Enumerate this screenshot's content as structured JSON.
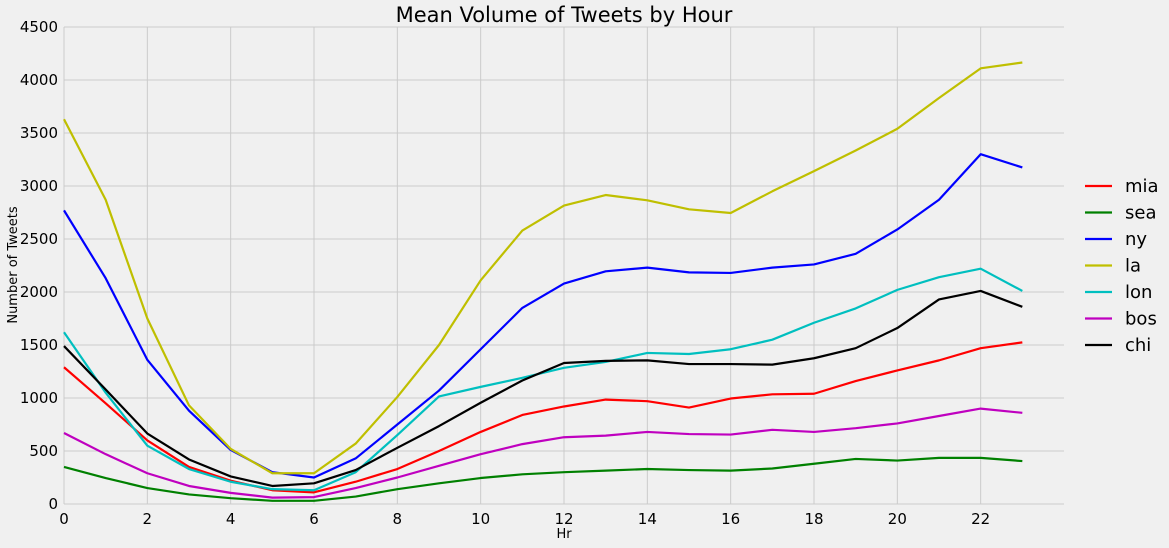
{
  "chart_data": {
    "type": "line",
    "title": "Mean Volume of Tweets by Hour",
    "xlabel": "Hr",
    "ylabel": "Number of Tweets",
    "xlim": [
      0,
      24
    ],
    "ylim": [
      0,
      4500
    ],
    "xticks": [
      0,
      2,
      4,
      6,
      8,
      10,
      12,
      14,
      16,
      18,
      20,
      22
    ],
    "yticks": [
      0,
      500,
      1000,
      1500,
      2000,
      2500,
      3000,
      3500,
      4000,
      4500
    ],
    "grid": true,
    "legend_position": "right",
    "x": [
      0,
      1,
      2,
      3,
      4,
      5,
      6,
      7,
      8,
      9,
      10,
      11,
      12,
      13,
      14,
      15,
      16,
      17,
      18,
      19,
      20,
      21,
      22,
      23
    ],
    "series": [
      {
        "name": "mia",
        "color": "#ff0000",
        "values": [
          1290,
          950,
          600,
          350,
          220,
          130,
          110,
          210,
          330,
          500,
          680,
          840,
          920,
          985,
          970,
          910,
          995,
          1035,
          1040,
          1160,
          1260,
          1355,
          1470,
          1525
        ]
      },
      {
        "name": "sea",
        "color": "#008000",
        "values": [
          350,
          245,
          150,
          90,
          55,
          30,
          30,
          70,
          140,
          195,
          245,
          280,
          300,
          315,
          330,
          320,
          315,
          335,
          380,
          425,
          410,
          435,
          435,
          405
        ]
      },
      {
        "name": "ny",
        "color": "#0000ff",
        "values": [
          2770,
          2130,
          1360,
          880,
          510,
          300,
          250,
          430,
          750,
          1070,
          1460,
          1850,
          2080,
          2195,
          2230,
          2185,
          2180,
          2230,
          2260,
          2360,
          2590,
          2870,
          3300,
          3175
        ]
      },
      {
        "name": "la",
        "color": "#bfbf00",
        "values": [
          3630,
          2870,
          1750,
          930,
          520,
          290,
          290,
          570,
          1010,
          1500,
          2110,
          2580,
          2815,
          2915,
          2865,
          2780,
          2745,
          2950,
          3140,
          3335,
          3540,
          3830,
          4110,
          4165
        ]
      },
      {
        "name": "lon",
        "color": "#00bfbf",
        "values": [
          1620,
          1050,
          550,
          330,
          210,
          140,
          130,
          300,
          650,
          1015,
          1105,
          1190,
          1285,
          1340,
          1425,
          1415,
          1460,
          1550,
          1710,
          1845,
          2020,
          2140,
          2220,
          2010
        ]
      },
      {
        "name": "bos",
        "color": "#bf00bf",
        "values": [
          670,
          470,
          290,
          170,
          105,
          60,
          65,
          150,
          250,
          360,
          470,
          565,
          630,
          645,
          680,
          660,
          655,
          700,
          680,
          715,
          760,
          830,
          900,
          860
        ]
      },
      {
        "name": "chi",
        "color": "#000000",
        "values": [
          1490,
          1080,
          665,
          420,
          260,
          170,
          195,
          320,
          530,
          735,
          955,
          1165,
          1330,
          1350,
          1355,
          1320,
          1320,
          1315,
          1375,
          1470,
          1660,
          1930,
          2010,
          1860
        ]
      }
    ]
  }
}
